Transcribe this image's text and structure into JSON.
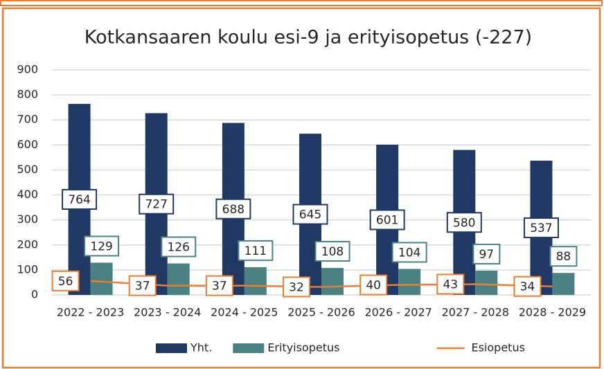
{
  "chart_data": {
    "type": "bar",
    "title": "Kotkansaaren koulu esi-9 ja erityisopetus (-227)",
    "categories": [
      "2022 - 2023",
      "2023 - 2024",
      "2024 - 2025",
      "2025 - 2026",
      "2026 - 2027",
      "2027 - 2028",
      "2028 - 2029"
    ],
    "series": [
      {
        "name": "Yht.",
        "color": "#203864",
        "values": [
          764,
          727,
          688,
          645,
          601,
          580,
          537
        ]
      },
      {
        "name": "Erityisopetus",
        "color": "#4a8284",
        "values": [
          129,
          126,
          111,
          108,
          104,
          97,
          88
        ]
      },
      {
        "name": "Esiopetus",
        "color": "#ed7d31",
        "type": "line",
        "values": [
          56,
          37,
          37,
          32,
          40,
          43,
          34
        ]
      }
    ],
    "ylim": [
      0,
      900
    ],
    "yticks": [
      0,
      100,
      200,
      300,
      400,
      500,
      600,
      700,
      800,
      900
    ],
    "grid": true,
    "legend": "bottom"
  }
}
